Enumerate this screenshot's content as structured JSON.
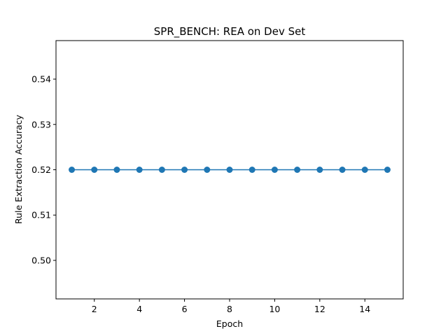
{
  "chart_data": {
    "type": "line",
    "title": "SPR_BENCH: REA on Dev Set",
    "xlabel": "Epoch",
    "ylabel": "Rule Extraction Accuracy",
    "x": [
      1,
      2,
      3,
      4,
      5,
      6,
      7,
      8,
      9,
      10,
      11,
      12,
      13,
      14,
      15
    ],
    "series": [
      {
        "values": [
          0.52,
          0.52,
          0.52,
          0.52,
          0.52,
          0.52,
          0.52,
          0.52,
          0.52,
          0.52,
          0.52,
          0.52,
          0.52,
          0.52,
          0.52
        ]
      }
    ],
    "xlim": [
      0.3,
      15.7
    ],
    "ylim": [
      0.4915,
      0.5485
    ],
    "xticks": [
      2,
      4,
      6,
      8,
      10,
      12,
      14
    ],
    "yticks": [
      0.5,
      0.51,
      0.52,
      0.53,
      0.54
    ],
    "ytick_labels": [
      "0.50",
      "0.51",
      "0.52",
      "0.53",
      "0.54"
    ],
    "grid": false,
    "marker": "circle",
    "color": "#1f77b4"
  }
}
